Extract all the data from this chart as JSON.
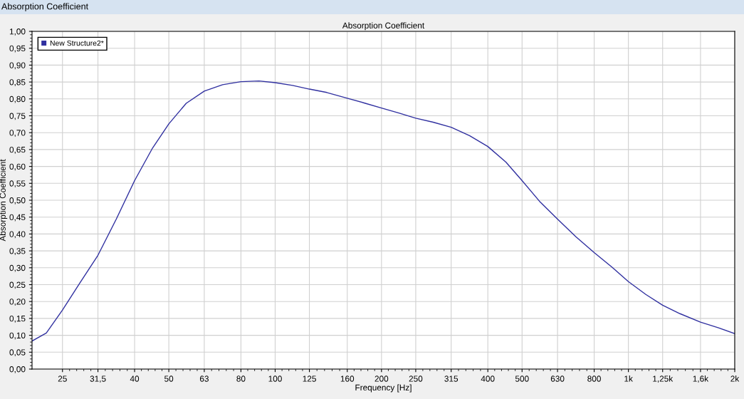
{
  "chart_data": {
    "type": "line",
    "title": "Absorption Coefficient",
    "xlabel": "Frequency [Hz]",
    "ylabel": "Absorption Coefficient",
    "annotations": [
      "Absorption Coefficient"
    ],
    "x": [
      20.5,
      22.5,
      25,
      28,
      31.5,
      35.5,
      40,
      45,
      50,
      56,
      63,
      71,
      80,
      90,
      100,
      112,
      125,
      140,
      160,
      180,
      200,
      224,
      250,
      280,
      315,
      355,
      400,
      450,
      500,
      560,
      630,
      710,
      800,
      900,
      1000,
      1120,
      1250,
      1400,
      1600,
      1800,
      2000
    ],
    "series": [
      {
        "name": "New Structure2*",
        "color": "#3030a0",
        "values": [
          0.083,
          0.107,
          0.175,
          0.255,
          0.337,
          0.444,
          0.558,
          0.655,
          0.726,
          0.787,
          0.823,
          0.842,
          0.851,
          0.853,
          0.848,
          0.84,
          0.829,
          0.819,
          0.802,
          0.787,
          0.773,
          0.758,
          0.743,
          0.731,
          0.716,
          0.691,
          0.659,
          0.613,
          0.558,
          0.497,
          0.444,
          0.392,
          0.345,
          0.301,
          0.259,
          0.221,
          0.189,
          0.164,
          0.139,
          0.122,
          0.105
        ]
      }
    ],
    "log": "x",
    "xlim": [
      20.5,
      2000
    ],
    "ylim": [
      0,
      1
    ],
    "xticks": [
      25,
      {
        "value": 31.5,
        "label": "31,5"
      },
      40,
      50,
      63,
      80,
      100,
      125,
      160,
      200,
      250,
      315,
      400,
      500,
      630,
      800,
      {
        "value": 1000,
        "label": "1k"
      },
      {
        "value": 1250,
        "label": "1,25k"
      },
      {
        "value": 1600,
        "label": "1,6k"
      },
      {
        "value": 2000,
        "label": "2k"
      }
    ],
    "yticks": [
      {
        "value": 0,
        "label": "0,00"
      },
      {
        "value": 0.05,
        "label": "0,05"
      },
      {
        "value": 0.1,
        "label": "0,10"
      },
      {
        "value": 0.15,
        "label": "0,15"
      },
      {
        "value": 0.2,
        "label": "0,20"
      },
      {
        "value": 0.25,
        "label": "0,25"
      },
      {
        "value": 0.3,
        "label": "0,30"
      },
      {
        "value": 0.35,
        "label": "0,35"
      },
      {
        "value": 0.4,
        "label": "0,40"
      },
      {
        "value": 0.45,
        "label": "0,45"
      },
      {
        "value": 0.5,
        "label": "0,50"
      },
      {
        "value": 0.55,
        "label": "0,55"
      },
      {
        "value": 0.6,
        "label": "0,60"
      },
      {
        "value": 0.65,
        "label": "0,65"
      },
      {
        "value": 0.7,
        "label": "0,70"
      },
      {
        "value": 0.75,
        "label": "0,75"
      },
      {
        "value": 0.8,
        "label": "0,80"
      },
      {
        "value": 0.85,
        "label": "0,85"
      },
      {
        "value": 0.9,
        "label": "0,90"
      },
      {
        "value": 0.95,
        "label": "0,95"
      },
      {
        "value": 1,
        "label": "1,00"
      }
    ],
    "grid": true,
    "legend": "top left",
    "marker": "none",
    "line_style": "solid"
  }
}
